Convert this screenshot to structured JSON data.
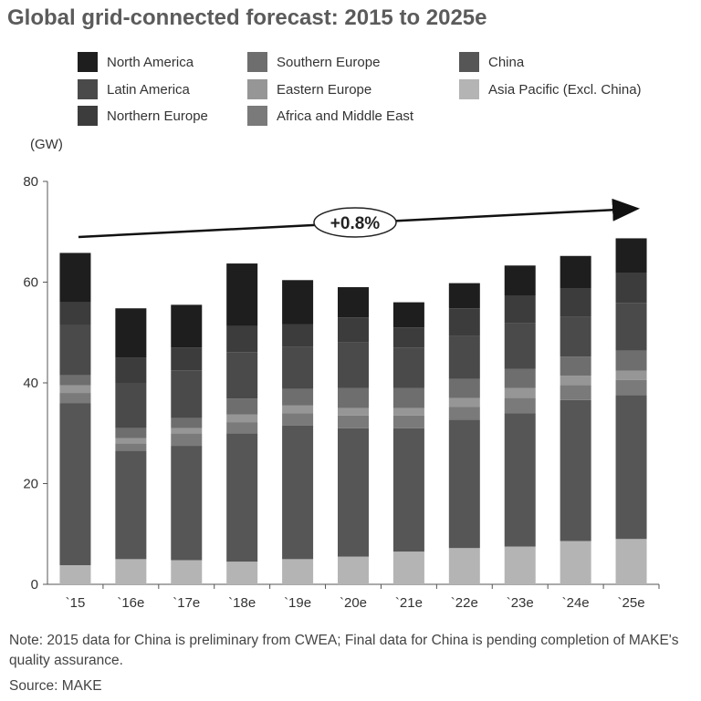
{
  "title": "Global grid-connected forecast: 2015 to 2025e",
  "unit": "(GW)",
  "annotation": "+0.8%",
  "note": "Note: 2015 data for China is preliminary from CWEA; Final data for China is pending completion of MAKE's quality assurance.",
  "source": "Source: MAKE",
  "chart_data": {
    "type": "bar",
    "stacked": true,
    "categories": [
      "`15",
      "`16e",
      "`17e",
      "`18e",
      "`19e",
      "`20e",
      "`21e",
      "`22e",
      "`23e",
      "`24e",
      "`25e"
    ],
    "ylim": [
      0,
      80
    ],
    "yticks": [
      0,
      20,
      40,
      60,
      80
    ],
    "ylabel": "(GW)",
    "grid": false,
    "legend_position": "top",
    "series": [
      {
        "name": "Asia Pacific (Excl. China)",
        "color": "#b4b4b4",
        "values": [
          3.8,
          5.0,
          4.8,
          4.5,
          5.0,
          5.5,
          6.5,
          7.2,
          7.5,
          8.6,
          9.0
        ]
      },
      {
        "name": "China",
        "color": "#565656",
        "values": [
          32.2,
          21.5,
          22.7,
          25.5,
          26.5,
          25.5,
          24.5,
          25.5,
          26.5,
          28.0,
          28.6
        ]
      },
      {
        "name": "Africa and Middle East",
        "color": "#7a7a7a",
        "values": [
          2.0,
          1.5,
          2.5,
          2.2,
          2.5,
          2.5,
          2.5,
          2.5,
          3.0,
          3.0,
          3.0
        ]
      },
      {
        "name": "Eastern Europe",
        "color": "#969696",
        "values": [
          1.5,
          1.0,
          1.0,
          1.5,
          1.5,
          1.5,
          1.5,
          1.8,
          2.0,
          1.8,
          1.8
        ]
      },
      {
        "name": "Southern Europe",
        "color": "#6e6e6e",
        "values": [
          2.0,
          2.0,
          2.0,
          3.2,
          3.3,
          4.0,
          4.0,
          3.8,
          3.8,
          3.8,
          4.0
        ]
      },
      {
        "name": "Latin America",
        "color": "#4a4a4a",
        "values": [
          10.0,
          9.0,
          9.5,
          9.2,
          8.3,
          9.0,
          8.0,
          8.5,
          9.0,
          8.0,
          9.5
        ]
      },
      {
        "name": "Northern Europe",
        "color": "#3c3c3c",
        "values": [
          4.5,
          5.0,
          4.5,
          5.2,
          4.5,
          5.0,
          4.0,
          5.5,
          5.5,
          5.5,
          6.0
        ]
      },
      {
        "name": "North America",
        "color": "#1e1e1e",
        "values": [
          9.8,
          9.8,
          8.5,
          12.4,
          8.8,
          6.0,
          5.0,
          5.0,
          6.0,
          6.5,
          6.8
        ]
      }
    ]
  },
  "legend": [
    {
      "name": "North America",
      "color": "#1e1e1e"
    },
    {
      "name": "Southern Europe",
      "color": "#6e6e6e"
    },
    {
      "name": "China",
      "color": "#565656"
    },
    {
      "name": "Latin America",
      "color": "#4a4a4a"
    },
    {
      "name": "Eastern Europe",
      "color": "#969696"
    },
    {
      "name": "Asia Pacific (Excl. China)",
      "color": "#b4b4b4"
    },
    {
      "name": "Northern Europe",
      "color": "#3c3c3c"
    },
    {
      "name": "Africa and Middle East",
      "color": "#7a7a7a"
    }
  ]
}
